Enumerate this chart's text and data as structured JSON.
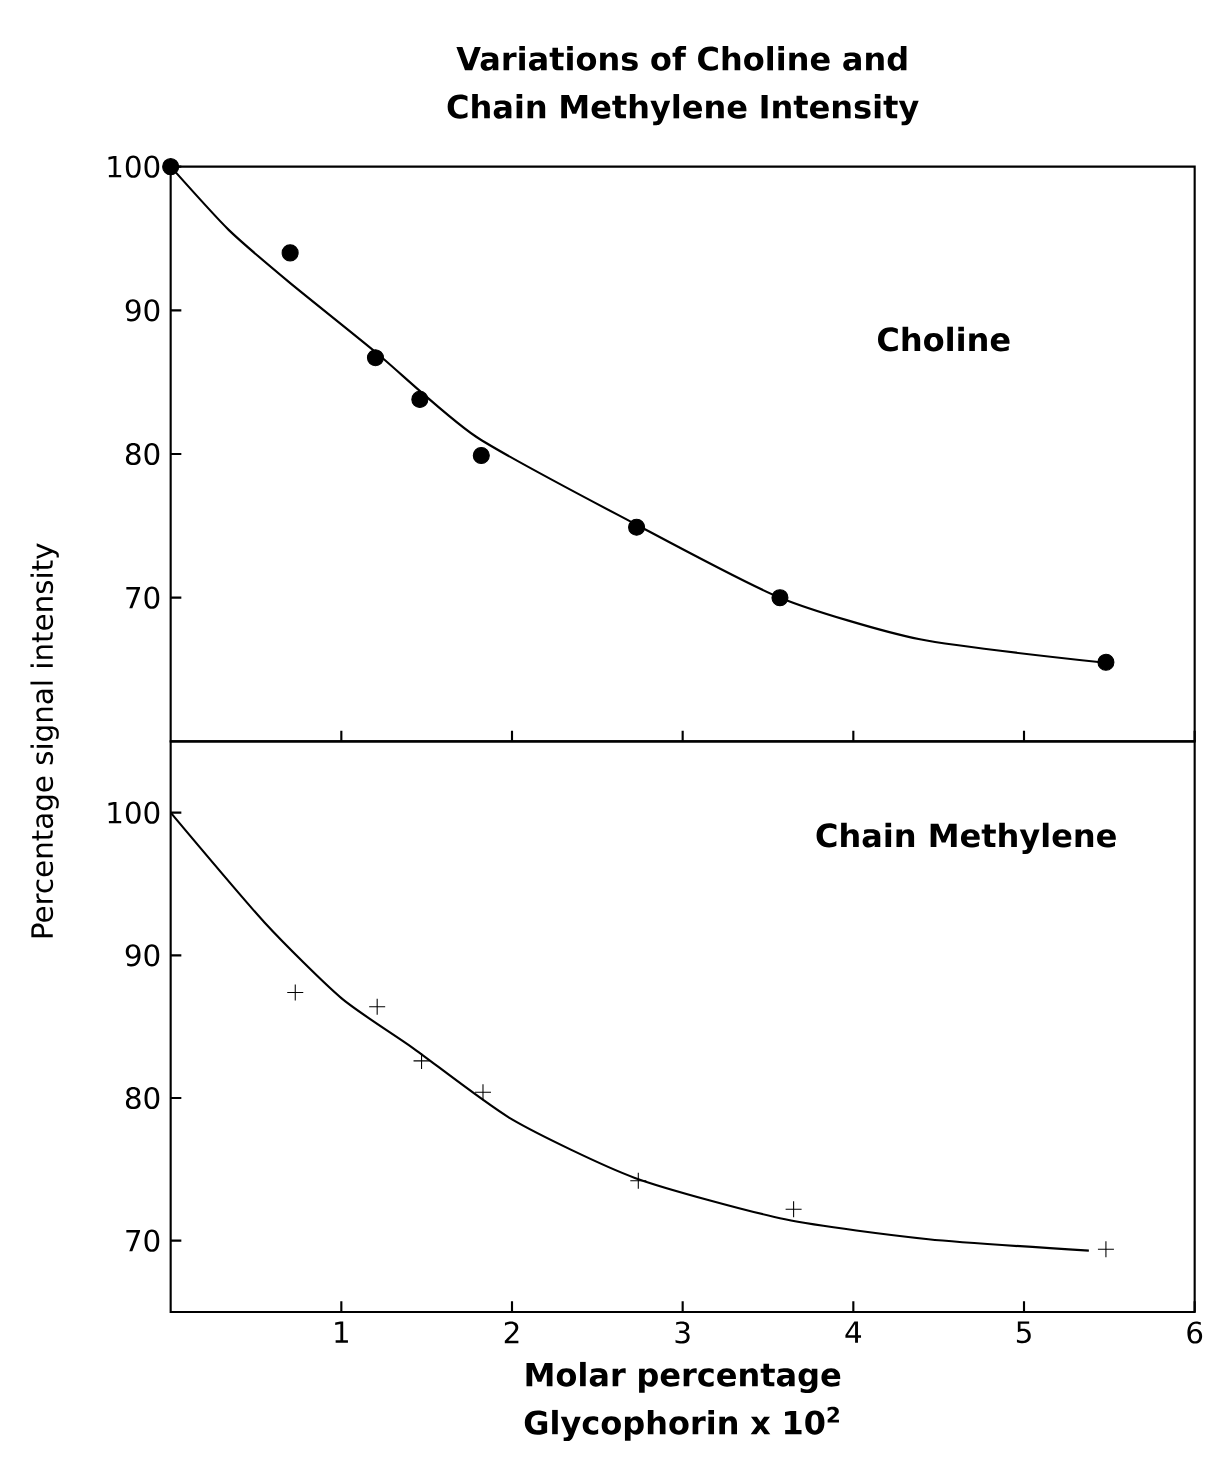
{
  "chart_data": [
    {
      "type": "scatter",
      "title": "Variations of Choline and Chain Methylene Intensity",
      "ylabel": "Percentage signal intensity",
      "xlim": [
        0,
        6
      ],
      "xticks": [
        1,
        2,
        3,
        4,
        5,
        6
      ],
      "ylim": [
        60,
        100
      ],
      "yticks": [
        70,
        80,
        90,
        100
      ],
      "tick_labels": "y",
      "grid": false,
      "legend": false,
      "series": [
        {
          "name": "Choline",
          "marker": "circle",
          "color": "#000000",
          "x": [
            0,
            0.7,
            1.2,
            1.46,
            1.82,
            2.73,
            3.57,
            5.48
          ],
          "values": [
            100,
            94,
            86.7,
            83.8,
            79.9,
            74.9,
            70,
            65.5
          ]
        },
        {
          "type": "line",
          "marker": "none",
          "line_style": "solid",
          "color": "#000000",
          "x": [
            0,
            0.34,
            0.69,
            1.2,
            1.79,
            2.71,
            3.57,
            4.39,
            5.45
          ],
          "values": [
            100,
            95.6,
            92,
            87.1,
            81.2,
            75.2,
            70,
            67.1,
            65.5
          ]
        }
      ]
    },
    {
      "type": "scatter",
      "xlabel": "Molar percentage Glycophorin x 10$^{2}$",
      "xlim": [
        0,
        6
      ],
      "xticks": [
        1,
        2,
        3,
        4,
        5,
        6
      ],
      "ylim": [
        65,
        105
      ],
      "yticks": [
        70,
        80,
        90,
        100
      ],
      "grid": false,
      "legend": false,
      "series": [
        {
          "name": "Chain Methylene",
          "marker": "cross",
          "color": "#000000",
          "x": [
            0.73,
            1.21,
            1.47,
            1.83,
            2.74,
            3.65,
            5.48
          ],
          "values": [
            87.4,
            86.4,
            82.6,
            80.4,
            74.2,
            72.2,
            69.4
          ]
        },
        {
          "type": "line",
          "marker": "none",
          "line_style": "solid",
          "color": "#000000",
          "x": [
            0,
            0.55,
            1.0,
            1.42,
            2.0,
            2.72,
            3.6,
            4.44,
            5.38
          ],
          "values": [
            100,
            92.3,
            87,
            83.5,
            78.5,
            74.4,
            71.5,
            70.1,
            69.3
          ]
        }
      ]
    }
  ]
}
